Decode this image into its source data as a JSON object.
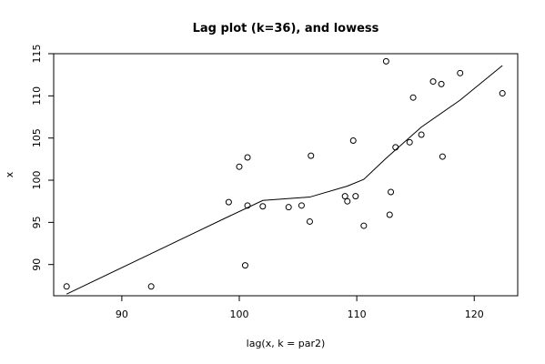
{
  "chart_data": {
    "type": "scatter",
    "title": "Lag plot (k=36), and lowess",
    "xlabel": "lag(x, k = par2)",
    "ylabel": "x",
    "xlim": [
      84.2,
      123.7
    ],
    "ylim": [
      86.3,
      115.0
    ],
    "xticks": [
      90,
      100,
      110,
      120
    ],
    "yticks": [
      90,
      95,
      100,
      105,
      110,
      115
    ],
    "grid": false,
    "points": [
      {
        "x": 85.3,
        "y": 87.4
      },
      {
        "x": 92.5,
        "y": 87.4
      },
      {
        "x": 99.1,
        "y": 97.4
      },
      {
        "x": 100.0,
        "y": 101.6
      },
      {
        "x": 100.5,
        "y": 89.9
      },
      {
        "x": 100.7,
        "y": 102.7
      },
      {
        "x": 100.7,
        "y": 97.0
      },
      {
        "x": 102.0,
        "y": 96.9
      },
      {
        "x": 104.2,
        "y": 96.8
      },
      {
        "x": 105.3,
        "y": 97.0
      },
      {
        "x": 106.0,
        "y": 95.1
      },
      {
        "x": 106.1,
        "y": 102.9
      },
      {
        "x": 109.0,
        "y": 98.1
      },
      {
        "x": 109.2,
        "y": 97.5
      },
      {
        "x": 109.7,
        "y": 104.7
      },
      {
        "x": 109.9,
        "y": 98.1
      },
      {
        "x": 110.6,
        "y": 94.6
      },
      {
        "x": 112.5,
        "y": 114.1
      },
      {
        "x": 112.8,
        "y": 95.9
      },
      {
        "x": 112.9,
        "y": 98.6
      },
      {
        "x": 113.3,
        "y": 103.9
      },
      {
        "x": 114.5,
        "y": 104.5
      },
      {
        "x": 114.8,
        "y": 109.8
      },
      {
        "x": 115.5,
        "y": 105.4
      },
      {
        "x": 116.5,
        "y": 111.7
      },
      {
        "x": 117.2,
        "y": 111.4
      },
      {
        "x": 117.3,
        "y": 102.8
      },
      {
        "x": 118.8,
        "y": 112.7
      },
      {
        "x": 122.4,
        "y": 110.3
      }
    ],
    "lowess_line": [
      {
        "x": 85.3,
        "y": 86.5
      },
      {
        "x": 92.5,
        "y": 91.3
      },
      {
        "x": 99.1,
        "y": 95.7
      },
      {
        "x": 102.0,
        "y": 97.6
      },
      {
        "x": 106.0,
        "y": 98.0
      },
      {
        "x": 109.2,
        "y": 99.3
      },
      {
        "x": 110.6,
        "y": 100.1
      },
      {
        "x": 112.5,
        "y": 102.6
      },
      {
        "x": 115.5,
        "y": 106.3
      },
      {
        "x": 118.8,
        "y": 109.5
      },
      {
        "x": 122.4,
        "y": 113.6
      }
    ]
  }
}
